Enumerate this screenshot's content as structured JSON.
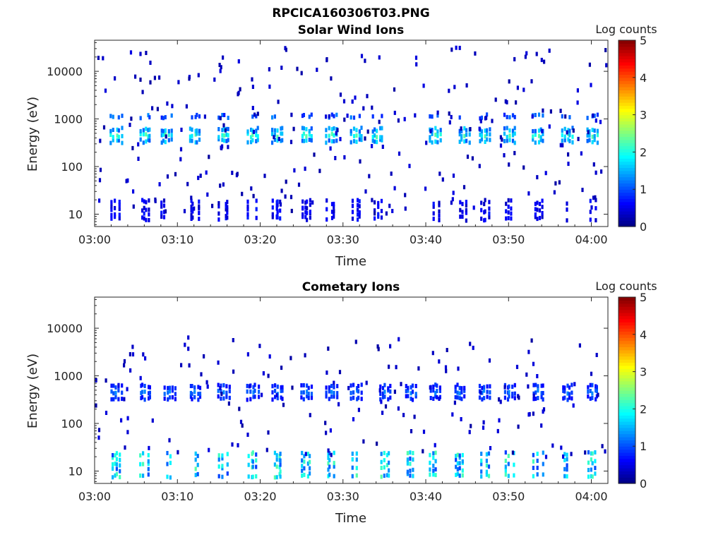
{
  "figure_title": "RPCICA160306T03.PNG",
  "chart_data": [
    {
      "type": "heatmap",
      "title": "Solar Wind Ions",
      "xlabel": "Time",
      "ylabel": "Energy (eV)",
      "x_ticks": [
        "03:00",
        "03:10",
        "03:20",
        "03:30",
        "03:40",
        "03:50",
        "04:00"
      ],
      "x_range_minutes": [
        0,
        62
      ],
      "y_scale": "log",
      "y_ticks": [
        10,
        100,
        1000,
        10000
      ],
      "ylim": [
        5.5,
        45000
      ],
      "colorbar": {
        "label": "Log counts",
        "ticks": [
          0,
          1,
          2,
          3,
          4,
          5
        ],
        "range": [
          0,
          5
        ],
        "colormap": "jet"
      },
      "features": {
        "band_energy_eV": 500,
        "band_level": 2.3,
        "secondary_energy_eV": 1250,
        "secondary_level": 1.2,
        "low_energy_eV": [
          9,
          20
        ],
        "low_level": 0.6,
        "burst_times_min": [
          2.5,
          6,
          8.5,
          12,
          15.5,
          19,
          22,
          25.5,
          28.5,
          31.5,
          34,
          41,
          44.5,
          47,
          50,
          53.5,
          57,
          60
        ]
      }
    },
    {
      "type": "heatmap",
      "title": "Cometary Ions",
      "xlabel": "Time",
      "ylabel": "Energy (eV)",
      "x_ticks": [
        "03:00",
        "03:10",
        "03:20",
        "03:30",
        "03:40",
        "03:50",
        "04:00"
      ],
      "x_range_minutes": [
        0,
        62
      ],
      "y_scale": "log",
      "y_ticks": [
        10,
        100,
        1000,
        10000
      ],
      "ylim": [
        5.5,
        45000
      ],
      "colorbar": {
        "label": "Log counts",
        "ticks": [
          0,
          1,
          2,
          3,
          4,
          5
        ],
        "range": [
          0,
          5
        ],
        "colormap": "jet"
      },
      "features": {
        "band_energy_eV": 500,
        "band_level": 1.3,
        "low_energy_eV": [
          9,
          25
        ],
        "low_level": 1.8,
        "burst_times_min": [
          2.5,
          6,
          9,
          12,
          15.5,
          19,
          22,
          25.5,
          28.5,
          31.5,
          35,
          38,
          41,
          44,
          47,
          50,
          53.5,
          57,
          60
        ]
      }
    }
  ]
}
